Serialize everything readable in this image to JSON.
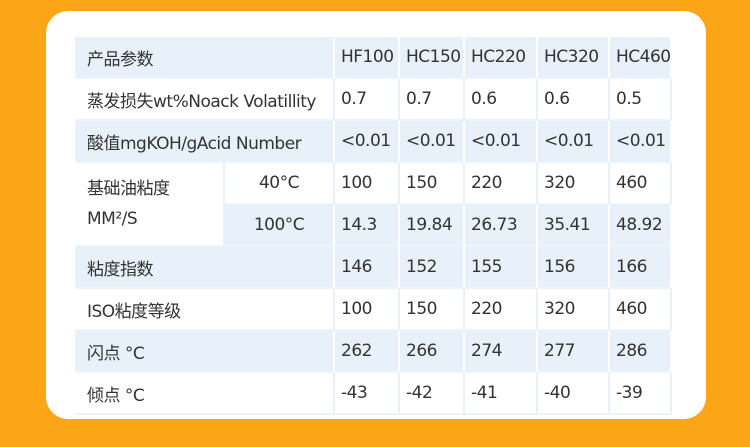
{
  "table": {
    "header": {
      "label": "产品参数",
      "columns": [
        "HF100",
        "HC150",
        "HC220",
        "HC320",
        "HC460"
      ]
    },
    "rows": [
      {
        "label": "蒸发损失wt%Noack Volatillity",
        "values": [
          "0.7",
          "0.7",
          "0.6",
          "0.6",
          "0.5"
        ]
      },
      {
        "label": "酸值mgKOH/gAcid Number",
        "values": [
          "<0.01",
          "<0.01",
          "<0.01",
          "<0.01",
          "<0.01"
        ]
      },
      {
        "label": [
          "基础油粘度",
          "MM²/S"
        ],
        "subrows": [
          {
            "label": "40°C",
            "values": [
              "100",
              "150",
              "220",
              "320",
              "460"
            ]
          },
          {
            "label": "100°C",
            "values": [
              "14.3",
              "19.84",
              "26.73",
              "35.41",
              "48.92"
            ]
          }
        ]
      },
      {
        "label": "粘度指数",
        "values": [
          "146",
          "152",
          "155",
          "156",
          "166"
        ]
      },
      {
        "label": "ISO粘度等级",
        "values": [
          "100",
          "150",
          "220",
          "320",
          "460"
        ]
      },
      {
        "label": "闪点 °C",
        "values": [
          "262",
          "266",
          "274",
          "277",
          "286"
        ]
      },
      {
        "label": "倾点 °C",
        "values": [
          "-43",
          "-42",
          "-41",
          "-40",
          "-39"
        ]
      }
    ]
  }
}
